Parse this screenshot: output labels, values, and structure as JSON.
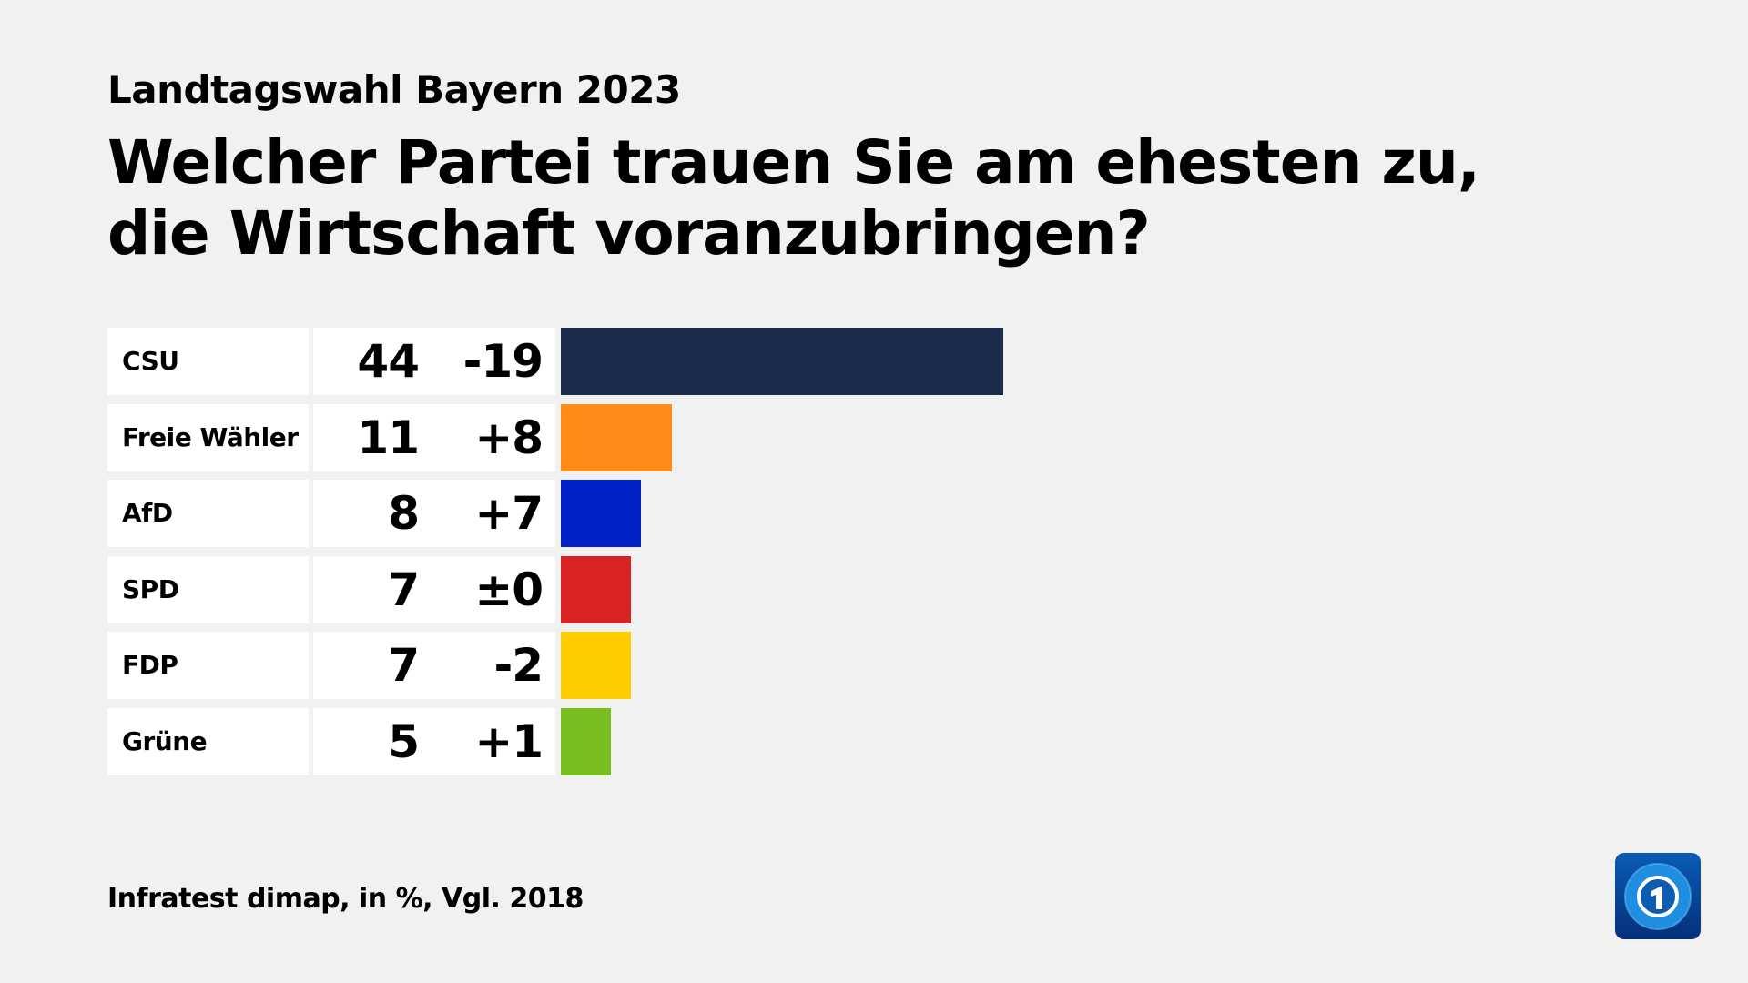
{
  "chart_data": {
    "type": "bar",
    "orientation": "horizontal",
    "subtitle": "Landtagswahl Bayern 2023",
    "title": "Welcher Partei trauen Sie am ehesten zu, die Wirtschaft voranzubringen?",
    "categories": [
      "CSU",
      "Freie Wähler",
      "AfD",
      "SPD",
      "FDP",
      "Grüne"
    ],
    "values": [
      44,
      11,
      8,
      7,
      7,
      5
    ],
    "changes": [
      "-19",
      "+8",
      "+7",
      "±0",
      "-2",
      "+1"
    ],
    "colors": [
      "#1b2c4a",
      "#ff8c18",
      "#0020c8",
      "#d92222",
      "#ffcc00",
      "#78be1e"
    ],
    "source": "Infratest dimap, in %, Vgl. 2018",
    "grid": false
  },
  "logo": {
    "name": "tagesschau-logo",
    "text": "1"
  }
}
